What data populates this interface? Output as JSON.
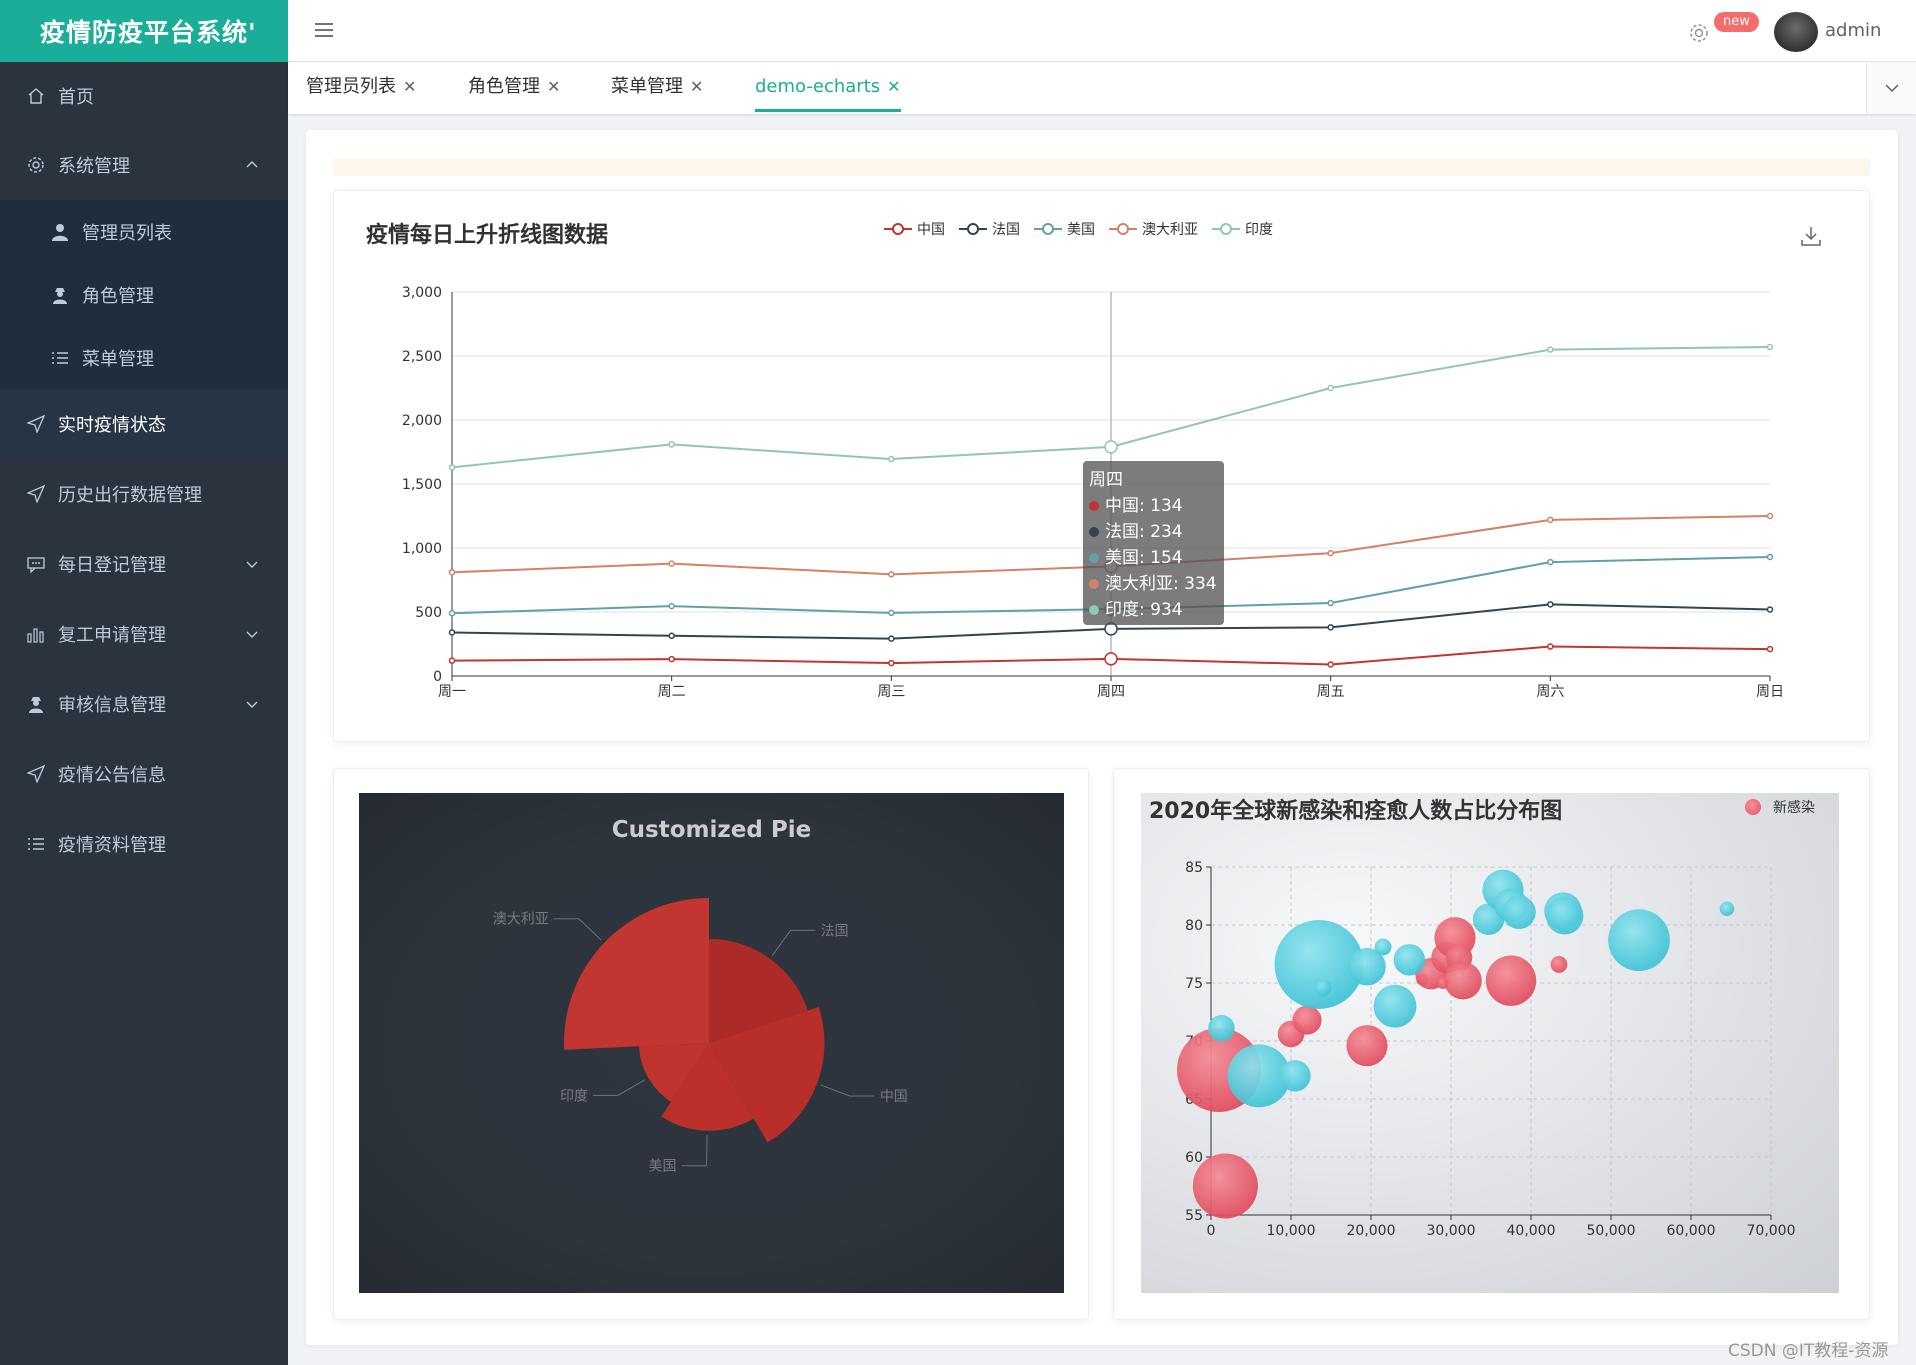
{
  "app": {
    "title": "疫情防疫平台系统'"
  },
  "header": {
    "badge": "new",
    "username": "admin"
  },
  "sidebar": {
    "items": [
      {
        "label": "首页",
        "icon": "home-icon"
      },
      {
        "label": "系统管理",
        "icon": "gear-icon",
        "expanded": true
      },
      {
        "label": "实时疫情状态",
        "icon": "send-icon",
        "active": true
      },
      {
        "label": "历史出行数据管理",
        "icon": "send-icon"
      },
      {
        "label": "每日登记管理",
        "icon": "chat-icon"
      },
      {
        "label": "复工申请管理",
        "icon": "bar-chart-icon"
      },
      {
        "label": "审核信息管理",
        "icon": "user-icon"
      },
      {
        "label": "疫情公告信息",
        "icon": "send-icon"
      },
      {
        "label": "疫情资料管理",
        "icon": "list-icon"
      }
    ],
    "submenu": [
      {
        "label": "管理员列表",
        "icon": "user-icon"
      },
      {
        "label": "角色管理",
        "icon": "user-icon"
      },
      {
        "label": "菜单管理",
        "icon": "list-icon"
      }
    ]
  },
  "tabs": [
    {
      "label": "管理员列表"
    },
    {
      "label": "角色管理"
    },
    {
      "label": "菜单管理"
    },
    {
      "label": "demo-echarts",
      "active": true
    }
  ],
  "colors": {
    "accent": "#1aae99",
    "sidebar": "#2b333e",
    "badge": "#f56c6c"
  },
  "line_card": {
    "title": "疫情每日上升折线图数据"
  },
  "pie_card": {
    "title": "Customized Pie"
  },
  "bubble_card": {
    "title": "2020年全球新感染和痊愈人数占比分布图",
    "legend": "新感染"
  },
  "tooltip": {
    "title": "周四",
    "rows": [
      {
        "text": "中国: 134",
        "color": "#c23531"
      },
      {
        "text": "法国: 234",
        "color": "#2f4554"
      },
      {
        "text": "美国: 154",
        "color": "#61a0a8"
      },
      {
        "text": "澳大利亚: 334",
        "color": "#d48265"
      },
      {
        "text": "印度: 934",
        "color": "#91c7ae"
      }
    ]
  },
  "watermark": "CSDN @IT教程-资源",
  "chart_data": [
    {
      "type": "line",
      "stacked": true,
      "title": "疫情每日上升折线图数据",
      "categories": [
        "周一",
        "周二",
        "周三",
        "周四",
        "周五",
        "周六",
        "周日"
      ],
      "ylim": [
        0,
        3000
      ],
      "yticks": [
        0,
        500,
        1000,
        1500,
        2000,
        2500,
        3000
      ],
      "legend_position": "top",
      "series": [
        {
          "name": "中国",
          "color": "#c23531",
          "values": [
            120,
            132,
            101,
            134,
            90,
            230,
            210
          ]
        },
        {
          "name": "法国",
          "color": "#2f4554",
          "values": [
            220,
            182,
            191,
            234,
            290,
            330,
            310
          ]
        },
        {
          "name": "美国",
          "color": "#61a0a8",
          "values": [
            150,
            232,
            201,
            154,
            190,
            330,
            410
          ]
        },
        {
          "name": "澳大利亚",
          "color": "#d48265",
          "values": [
            320,
            332,
            301,
            334,
            390,
            330,
            320
          ]
        },
        {
          "name": "印度",
          "color": "#91c7ae",
          "values": [
            820,
            932,
            901,
            934,
            1290,
            1330,
            1320
          ]
        }
      ]
    },
    {
      "type": "pie",
      "title": "Customized Pie",
      "rose": true,
      "color": "#c23531",
      "slices": [
        {
          "label": "法国",
          "value": 310
        },
        {
          "label": "中国",
          "value": 335
        },
        {
          "label": "美国",
          "value": 274
        },
        {
          "label": "印度",
          "value": 235
        },
        {
          "label": "澳大利亚",
          "value": 400
        }
      ]
    },
    {
      "type": "scatter",
      "title": "2020年全球新感染和痊愈人数占比分布图",
      "legend": [
        "新感染"
      ],
      "xlim": [
        0,
        70000
      ],
      "ylim": [
        55,
        85
      ],
      "xticks": [
        0,
        10000,
        20000,
        30000,
        40000,
        50000,
        60000,
        70000
      ],
      "yticks": [
        55,
        60,
        65,
        70,
        75,
        80,
        85
      ],
      "series": [
        {
          "name": "新感染",
          "color": "#e15062",
          "points": [
            [
              1000,
              67.5,
              100
            ],
            [
              1800,
              57.5,
              60
            ],
            [
              10000,
              70.6,
              10
            ],
            [
              12000,
              71.8,
              12
            ],
            [
              19500,
              69.6,
              24
            ],
            [
              26400,
              75.3,
              2
            ],
            [
              27500,
              75.8,
              14
            ],
            [
              29000,
              75,
              2
            ],
            [
              29500,
              77.2,
              14
            ],
            [
              30500,
              78.9,
              24
            ],
            [
              31000,
              77.2,
              10
            ],
            [
              31500,
              75.2,
              20
            ],
            [
              37500,
              75.2,
              36
            ],
            [
              43500,
              76.6,
              4
            ]
          ]
        },
        {
          "name": "",
          "color": "#4ec9d9",
          "points": [
            [
              1300,
              71.1,
              10
            ],
            [
              6000,
              67,
              56
            ],
            [
              10500,
              67,
              14
            ],
            [
              13500,
              76.6,
              112
            ],
            [
              14000,
              74.6,
              4
            ],
            [
              19500,
              76.4,
              20
            ],
            [
              21500,
              78.1,
              4
            ],
            [
              23000,
              73,
              26
            ],
            [
              24800,
              77,
              14
            ],
            [
              34700,
              80.5,
              14
            ],
            [
              36500,
              83,
              24
            ],
            [
              37500,
              81.7,
              16
            ],
            [
              38500,
              81.1,
              16
            ],
            [
              44000,
              81.2,
              20
            ],
            [
              44200,
              80.8,
              20
            ],
            [
              53500,
              78.7,
              54
            ],
            [
              64500,
              81.4,
              3
            ]
          ]
        }
      ]
    }
  ]
}
